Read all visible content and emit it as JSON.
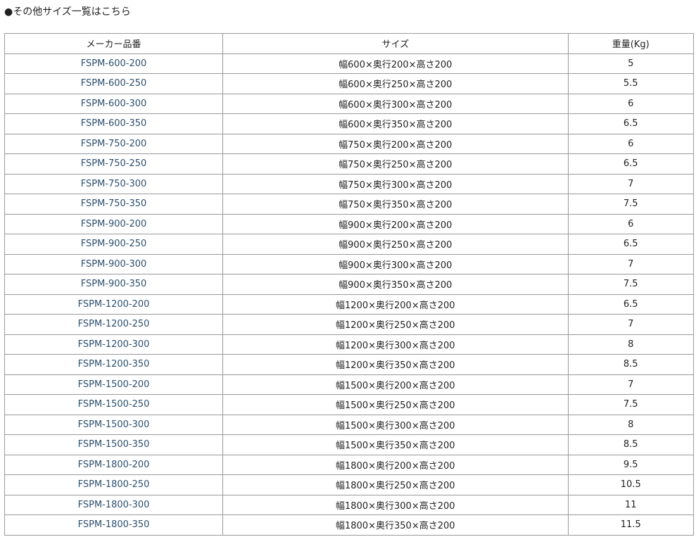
{
  "heading": "●その他サイズ一覧はこちら",
  "table": {
    "headers": [
      "メーカー品番",
      "サイズ",
      "重量(Kg)"
    ],
    "rows": [
      [
        "FSPM-600-200",
        "幅600×奥行200×高さ200",
        "5"
      ],
      [
        "FSPM-600-250",
        "幅600×奥行250×高さ200",
        "5.5"
      ],
      [
        "FSPM-600-300",
        "幅600×奥行300×高さ200",
        "6"
      ],
      [
        "FSPM-600-350",
        "幅600×奥行350×高さ200",
        "6.5"
      ],
      [
        "FSPM-750-200",
        "幅750×奥行200×高さ200",
        "6"
      ],
      [
        "FSPM-750-250",
        "幅750×奥行250×高さ200",
        "6.5"
      ],
      [
        "FSPM-750-300",
        "幅750×奥行300×高さ200",
        "7"
      ],
      [
        "FSPM-750-350",
        "幅750×奥行350×高さ200",
        "7.5"
      ],
      [
        "FSPM-900-200",
        "幅900×奥行200×高さ200",
        "6"
      ],
      [
        "FSPM-900-250",
        "幅900×奥行250×高さ200",
        "6.5"
      ],
      [
        "FSPM-900-300",
        "幅900×奥行300×高さ200",
        "7"
      ],
      [
        "FSPM-900-350",
        "幅900×奥行350×高さ200",
        "7.5"
      ],
      [
        "FSPM-1200-200",
        "幅1200×奥行200×高さ200",
        "6.5"
      ],
      [
        "FSPM-1200-250",
        "幅1200×奥行250×高さ200",
        "7"
      ],
      [
        "FSPM-1200-300",
        "幅1200×奥行300×高さ200",
        "8"
      ],
      [
        "FSPM-1200-350",
        "幅1200×奥行350×高さ200",
        "8.5"
      ],
      [
        "FSPM-1500-200",
        "幅1500×奥行200×高さ200",
        "7"
      ],
      [
        "FSPM-1500-250",
        "幅1500×奥行250×高さ200",
        "7.5"
      ],
      [
        "FSPM-1500-300",
        "幅1500×奥行300×高さ200",
        "8"
      ],
      [
        "FSPM-1500-350",
        "幅1500×奥行350×高さ200",
        "8.5"
      ],
      [
        "FSPM-1800-200",
        "幅1800×奥行200×高さ200",
        "9.5"
      ],
      [
        "FSPM-1800-250",
        "幅1800×奥行250×高さ200",
        "10.5"
      ],
      [
        "FSPM-1800-300",
        "幅1800×奥行300×高さ200",
        "11"
      ],
      [
        "FSPM-1800-350",
        "幅1800×奥行350×高さ200",
        "11.5"
      ]
    ]
  },
  "colors": {
    "link": "#2c4f6e",
    "border": "#999999"
  }
}
